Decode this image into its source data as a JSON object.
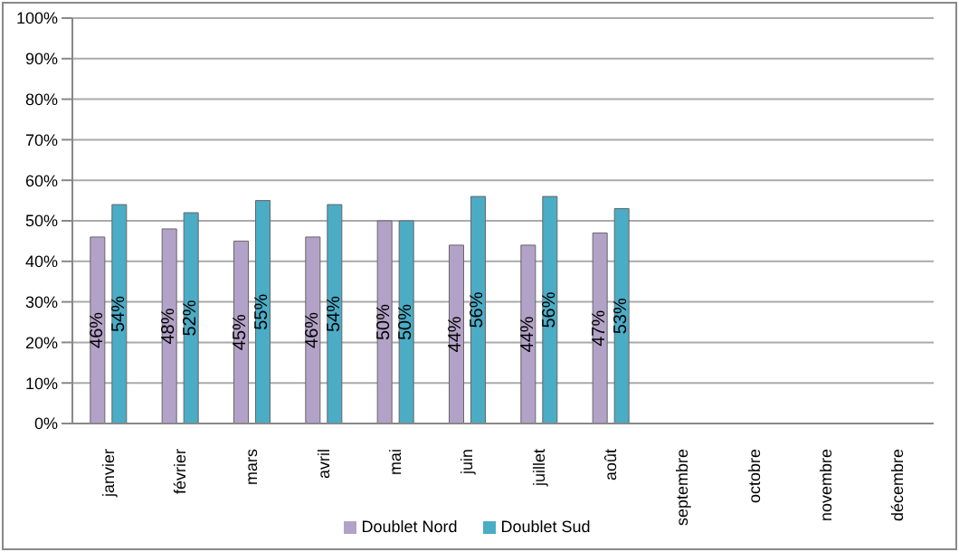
{
  "chart_data": {
    "type": "bar",
    "categories": [
      "janvier",
      "février",
      "mars",
      "avril",
      "mai",
      "juin",
      "juillet",
      "août",
      "septembre",
      "octobre",
      "novembre",
      "décembre"
    ],
    "series": [
      {
        "name": "Doublet Nord",
        "color": "#b3a2c7",
        "values": [
          46,
          48,
          45,
          46,
          50,
          44,
          44,
          47,
          null,
          null,
          null,
          null
        ],
        "value_labels": [
          "46%",
          "48%",
          "45%",
          "46%",
          "50%",
          "44%",
          "44%",
          "47%",
          null,
          null,
          null,
          null
        ]
      },
      {
        "name": "Doublet Sud",
        "color": "#4bacc6",
        "values": [
          54,
          52,
          55,
          54,
          50,
          56,
          56,
          53,
          null,
          null,
          null,
          null
        ],
        "value_labels": [
          "54%",
          "52%",
          "55%",
          "54%",
          "50%",
          "56%",
          "56%",
          "53%",
          null,
          null,
          null,
          null
        ]
      }
    ],
    "ylim": [
      0,
      100
    ],
    "yticks": [
      {
        "value": 0,
        "label": "0%"
      },
      {
        "value": 10,
        "label": "10%"
      },
      {
        "value": 20,
        "label": "20%"
      },
      {
        "value": 30,
        "label": "30%"
      },
      {
        "value": 40,
        "label": "40%"
      },
      {
        "value": 50,
        "label": "50%"
      },
      {
        "value": 60,
        "label": "60%"
      },
      {
        "value": 70,
        "label": "70%"
      },
      {
        "value": 80,
        "label": "80%"
      },
      {
        "value": 90,
        "label": "90%"
      },
      {
        "value": 100,
        "label": "100%"
      }
    ],
    "grid": "y",
    "legend": "bottom"
  }
}
